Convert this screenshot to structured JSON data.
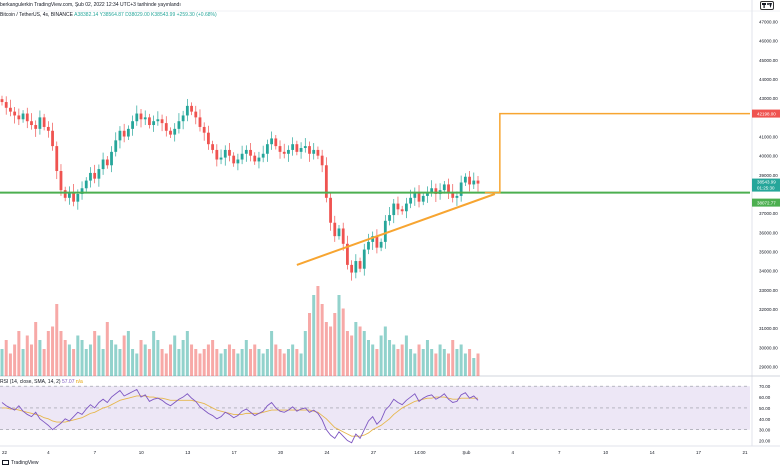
{
  "header": {
    "title": "berkangulerkin TradingView.com, Şub 02, 2022 12:34 UTC+3 tarihinde yayınlandı"
  },
  "symbol_info": {
    "name": "Bitcoin / TetherUS, 4s, BINANCE",
    "values": "A38382.14 Y38564.87 D38029.00 K38543.99 +259.30 (+0.68%)"
  },
  "rsi_info": {
    "label": "RSI (14, close, SMA, 14, 2)",
    "value": "57.07",
    "ma_value": "n/a"
  },
  "footer": {
    "brand": "TradingView"
  },
  "price_axis": {
    "labels": [
      "47000.00",
      "46000.00",
      "45000.00",
      "44000.00",
      "43000.00",
      "41000.00",
      "40000.00",
      "39000.00",
      "37000.00",
      "36000.00",
      "35000.00",
      "34000.00",
      "33000.00",
      "32000.00",
      "31000.00",
      "30000.00",
      "29000.00"
    ],
    "target_label": "42198.00",
    "current_label": "38543.99",
    "countdown_label": "01:25:30",
    "support_label": "38072.77"
  },
  "rsi_axis": {
    "labels": [
      "70.00",
      "60.00",
      "50.00",
      "40.00",
      "30.00",
      "20.00"
    ]
  },
  "time_axis": {
    "labels": [
      "22",
      "4",
      "7",
      "10",
      "13",
      "17",
      "20",
      "24",
      "27",
      "14:00",
      "Şub",
      "4",
      "7",
      "10",
      "14",
      "17",
      "21"
    ]
  },
  "colors": {
    "up": "#26a69a",
    "down": "#ef5350",
    "support_line": "#4caf50",
    "trendline": "#f7a531",
    "target_label_bg": "#ef5350",
    "current_label_bg": "#26a69a",
    "support_label_bg": "#4caf50",
    "rsi_line": "#7e57c2",
    "rsi_ma": "#e6b74d",
    "rsi_band": "#ede7f6"
  },
  "chart_data": [
    {
      "type": "candlestick",
      "symbol": "Bitcoin / TetherUS",
      "interval": "4s",
      "exchange": "BINANCE",
      "y_range": [
        28500,
        47500
      ],
      "open": 38382.14,
      "high": 38564.87,
      "low": 38029.0,
      "close": 38543.99,
      "change": 259.3,
      "change_pct": 0.68,
      "close_path": [
        42800,
        42500,
        42300,
        42100,
        41900,
        42200,
        41800,
        41600,
        41400,
        42000,
        41500,
        41300,
        40500,
        39200,
        38200,
        37800,
        38100,
        37600,
        38000,
        38300,
        38700,
        39100,
        38800,
        39300,
        39800,
        39500,
        40200,
        40800,
        41300,
        41000,
        41400,
        41800,
        42200,
        41900,
        42000,
        41600,
        41800,
        41900,
        41700,
        41300,
        41100,
        41400,
        41800,
        42100,
        42600,
        42300,
        42000,
        41500,
        41200,
        40600,
        40300,
        39800,
        39900,
        40300,
        40000,
        39600,
        39800,
        40100,
        40300,
        40000,
        39700,
        39900,
        40100,
        40600,
        40900,
        40500,
        40200,
        40100,
        40300,
        40600,
        40200,
        40400,
        40500,
        40100,
        40300,
        40000,
        39500,
        37800,
        36500,
        35800,
        36200,
        35400,
        34300,
        33900,
        34500,
        34100,
        35100,
        35500,
        35800,
        35200,
        35500,
        36600,
        36900,
        37500,
        37200,
        37100,
        37500,
        37800,
        38100,
        37600,
        37900,
        38100,
        38300,
        38000,
        38200,
        38500,
        38100,
        37800,
        37900,
        38600,
        38900,
        38500,
        38700,
        38543.99
      ],
      "volume_relative": [
        0.3,
        0.4,
        0.25,
        0.35,
        0.5,
        0.3,
        0.45,
        0.35,
        0.6,
        0.4,
        0.3,
        0.5,
        0.55,
        0.8,
        0.5,
        0.4,
        0.35,
        0.3,
        0.45,
        0.4,
        0.3,
        0.35,
        0.5,
        0.45,
        0.3,
        0.6,
        0.4,
        0.35,
        0.3,
        0.45,
        0.5,
        0.3,
        0.25,
        0.4,
        0.35,
        0.3,
        0.5,
        0.4,
        0.3,
        0.25,
        0.35,
        0.45,
        0.3,
        0.4,
        0.5,
        0.35,
        0.3,
        0.25,
        0.3,
        0.35,
        0.4,
        0.3,
        0.25,
        0.3,
        0.35,
        0.3,
        0.25,
        0.3,
        0.4,
        0.3,
        0.35,
        0.3,
        0.25,
        0.3,
        0.5,
        0.35,
        0.3,
        0.25,
        0.3,
        0.35,
        0.3,
        0.25,
        0.5,
        0.7,
        0.9,
        1.0,
        0.8,
        0.6,
        0.55,
        0.7,
        0.9,
        0.75,
        0.5,
        0.45,
        0.6,
        0.55,
        0.5,
        0.4,
        0.35,
        0.3,
        0.45,
        0.55,
        0.4,
        0.35,
        0.3,
        0.35,
        0.45,
        0.3,
        0.25,
        0.35,
        0.3,
        0.4,
        0.3,
        0.25,
        0.35,
        0.3,
        0.25,
        0.4,
        0.3,
        0.35,
        0.25,
        0.3,
        0.2,
        0.25
      ],
      "levels": {
        "support": 38072.77,
        "target": 42198.0
      },
      "ascending_trendline": [
        {
          "index": 70,
          "price": 34300
        },
        {
          "index": 117,
          "price": 38000
        }
      ]
    },
    {
      "type": "line",
      "name": "RSI (14, close, SMA, 14, 2)",
      "y_range": [
        15,
        72
      ],
      "bands": [
        30,
        50,
        70
      ],
      "value": 57.07,
      "rsi_path": [
        55,
        52,
        50,
        48,
        52,
        47,
        44,
        42,
        46,
        40,
        37,
        34,
        30,
        33,
        36,
        40,
        38,
        42,
        46,
        44,
        49,
        53,
        50,
        55,
        58,
        55,
        60,
        63,
        66,
        61,
        63,
        65,
        67,
        60,
        62,
        56,
        58,
        59,
        57,
        54,
        52,
        55,
        58,
        60,
        63,
        59,
        56,
        51,
        48,
        45,
        43,
        40,
        42,
        46,
        44,
        41,
        43,
        47,
        49,
        46,
        43,
        45,
        47,
        52,
        55,
        50,
        47,
        46,
        48,
        51,
        47,
        49,
        50,
        46,
        48,
        45,
        39,
        30,
        25,
        22,
        28,
        24,
        20,
        18,
        26,
        22,
        30,
        38,
        42,
        35,
        39,
        48,
        52,
        58,
        55,
        53,
        57,
        60,
        63,
        56,
        59,
        61,
        62,
        58,
        60,
        63,
        58,
        55,
        56,
        62,
        64,
        59,
        61,
        57
      ],
      "ma_path": [
        50,
        50,
        49,
        49,
        48,
        47,
        46,
        45,
        44,
        43,
        41,
        40,
        38,
        37,
        37,
        37,
        38,
        39,
        40,
        41,
        43,
        45,
        46,
        48,
        50,
        51,
        53,
        55,
        57,
        58,
        59,
        60,
        61,
        61,
        61,
        60,
        60,
        59,
        59,
        58,
        57,
        57,
        57,
        57,
        57,
        57,
        56,
        55,
        54,
        52,
        50,
        48,
        47,
        46,
        45,
        44,
        44,
        44,
        45,
        45,
        45,
        45,
        46,
        47,
        48,
        48,
        48,
        48,
        48,
        48,
        48,
        48,
        48,
        48,
        47,
        46,
        43,
        40,
        36,
        32,
        30,
        28,
        26,
        24,
        24,
        24,
        25,
        27,
        30,
        32,
        34,
        37,
        40,
        44,
        47,
        50,
        52,
        54,
        56,
        57,
        58,
        59,
        59,
        60,
        60,
        60,
        59,
        58,
        58,
        59,
        59,
        59,
        59,
        59
      ]
    }
  ]
}
